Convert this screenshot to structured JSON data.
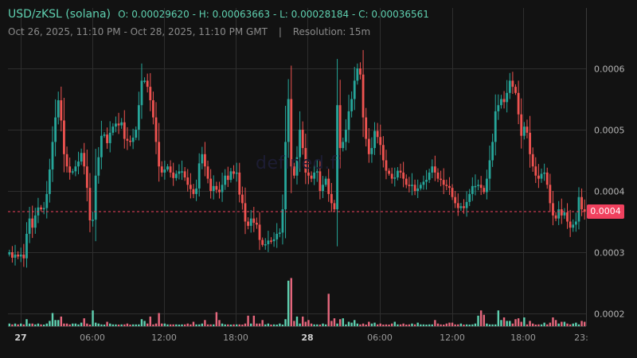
{
  "header": {
    "symbol": "USD/zKSL (solana)",
    "ohlc": "O: 0.00029620 - H: 0.00063663 - L: 0.00028184 - C: 0.00036561",
    "range": "Oct 26, 2025, 11:10 PM GMT - Oct 28, 2025, 11:10 PM GMT",
    "range_start": "Oct 26, 2025, 11:10 PM",
    "range_end": "Oct 28, 2025, 11:10 PM GMT",
    "separator": "|",
    "resolution": "Resolution: 15m"
  },
  "watermark": "defined.fi",
  "price_tag": "0.0004",
  "colors": {
    "background": "#121212",
    "up": "#26a69a",
    "down": "#ef5350",
    "up_volume": "#5fd0b0",
    "down_volume": "#e5677d",
    "grid": "#2e2e2e",
    "price_line": "#f0415e",
    "header_text": "#5fd0b0"
  },
  "chart_data": {
    "type": "candlestick",
    "title": "USD/zKSL (solana)",
    "subtitle": "Oct 26, 2025, 11:10 PM - Oct 28, 2025, 11:10 PM GMT | Resolution: 15m",
    "open": 0.0002962,
    "high": 0.00063663,
    "low": 0.00028184,
    "close": 0.00036561,
    "current_price_label": "0.0004",
    "y_ticks": [
      "0.0006",
      "0.0005",
      "0.0004",
      "0.0003",
      "0.0002"
    ],
    "y_tick_values": [
      0.0006,
      0.0005,
      0.0004,
      0.0003,
      0.0002
    ],
    "x_ticks": [
      "27",
      "06:00",
      "12:00",
      "18:00",
      "28",
      "06:00",
      "12:00",
      "18:00",
      "23:"
    ],
    "x_tick_bold": [
      true,
      false,
      false,
      false,
      true,
      false,
      false,
      false,
      false
    ],
    "ylim": [
      0.00018,
      0.00066
    ],
    "grid": true,
    "closes": [
      0.0003,
      0.000291,
      0.000296,
      0.000293,
      0.000296,
      0.00029,
      0.00033,
      0.000355,
      0.00034,
      0.00036,
      0.000373,
      0.00037,
      0.000372,
      0.000395,
      0.000435,
      0.00048,
      0.00052,
      0.000548,
      0.000515,
      0.00046,
      0.00044,
      0.00043,
      0.000432,
      0.00044,
      0.000448,
      0.000462,
      0.00044,
      0.000405,
      0.000352,
      0.000353,
      0.000425,
      0.000455,
      0.00049,
      0.000492,
      0.000478,
      0.000495,
      0.000505,
      0.00051,
      0.000507,
      0.000512,
      0.000485,
      0.000482,
      0.00048,
      0.000487,
      0.0005,
      0.00054,
      0.00058,
      0.00058,
      0.00057,
      0.000548,
      0.00052,
      0.00048,
      0.00044,
      0.00043,
      0.000435,
      0.00044,
      0.00043,
      0.000421,
      0.000428,
      0.000432,
      0.000432,
      0.000422,
      0.00041,
      0.000403,
      0.000395,
      0.000404,
      0.000445,
      0.00046,
      0.00044,
      0.00042,
      0.0004,
      0.000408,
      0.000402,
      0.000398,
      0.00041,
      0.000425,
      0.000418,
      0.000432,
      0.000428,
      0.00043,
      0.000394,
      0.00038,
      0.00035,
      0.000343,
      0.000355,
      0.000348,
      0.000345,
      0.00032,
      0.000312,
      0.000313,
      0.000319,
      0.000318,
      0.000321,
      0.00033,
      0.000332,
      0.00037,
      0.00048,
      0.00055,
      0.00044,
      0.000425,
      0.000455,
      0.0005,
      0.00047,
      0.00043,
      0.000425,
      0.00042,
      0.00043,
      0.000432,
      0.0004,
      0.00041,
      0.00042,
      0.000395,
      0.00038,
      0.00037,
      0.00054,
      0.00047,
      0.00048,
      0.0005,
      0.00053,
      0.00055,
      0.00058,
      0.0006,
      0.00059,
      0.00052,
      0.000485,
      0.00046,
      0.00047,
      0.000498,
      0.000488,
      0.000475,
      0.00045,
      0.000433,
      0.000428,
      0.00042,
      0.000422,
      0.000433,
      0.00043,
      0.00042,
      0.00041,
      0.000408,
      0.00041,
      0.0004,
      0.000404,
      0.00041,
      0.000415,
      0.000418,
      0.00043,
      0.00044,
      0.00043,
      0.00042,
      0.000418,
      0.00041,
      0.000408,
      0.000405,
      0.00039,
      0.00038,
      0.000372,
      0.000375,
      0.000372,
      0.000382,
      0.000395,
      0.000408,
      0.000408,
      0.00041,
      0.000405,
      0.000398,
      0.00042,
      0.00045,
      0.00048,
      0.00053,
      0.00054,
      0.00055,
      0.000545,
      0.00056,
      0.00058,
      0.00057,
      0.00056,
      0.000525,
      0.00049,
      0.000505,
      0.000495,
      0.00046,
      0.00044,
      0.000425,
      0.00042,
      0.000428,
      0.00043,
      0.00041,
      0.00038,
      0.00036,
      0.000355,
      0.00037,
      0.00036,
      0.000365,
      0.00035,
      0.00034,
      0.000345,
      0.00035,
      0.00039,
      0.00037,
      0.000366
    ],
    "volume_relative": [
      0.03,
      0.02,
      0.03,
      0.02,
      0.03,
      0.02,
      0.08,
      0.03,
      0.03,
      0.02,
      0.03,
      0.02,
      0.01,
      0.03,
      0.06,
      0.15,
      0.07,
      0.07,
      0.11,
      0.03,
      0.03,
      0.02,
      0.03,
      0.03,
      0.02,
      0.04,
      0.09,
      0.03,
      0.01,
      0.18,
      0.04,
      0.03,
      0.02,
      0.01,
      0.05,
      0.03,
      0.02,
      0.02,
      0.01,
      0.02,
      0.02,
      0.03,
      0.01,
      0.02,
      0.02,
      0.02,
      0.08,
      0.06,
      0.03,
      0.11,
      0.02,
      0.03,
      0.15,
      0.03,
      0.03,
      0.02,
      0.02,
      0.02,
      0.02,
      0.01,
      0.02,
      0.02,
      0.03,
      0.02,
      0.05,
      0.02,
      0.02,
      0.03,
      0.07,
      0.02,
      0.02,
      0.02,
      0.16,
      0.07,
      0.03,
      0.02,
      0.02,
      0.01,
      0.02,
      0.02,
      0.02,
      0.01,
      0.03,
      0.12,
      0.03,
      0.12,
      0.03,
      0.03,
      0.07,
      0.02,
      0.03,
      0.01,
      0.02,
      0.01,
      0.03,
      0.01,
      0.08,
      0.52,
      0.55,
      0.06,
      0.11,
      0.03,
      0.11,
      0.05,
      0.07,
      0.03,
      0.02,
      0.02,
      0.01,
      0.03,
      0.02,
      0.37,
      0.06,
      0.09,
      0.03,
      0.08,
      0.09,
      0.02,
      0.05,
      0.04,
      0.07,
      0.03,
      0.02,
      0.03,
      0.01,
      0.05,
      0.03,
      0.04,
      0.02,
      0.03,
      0.01,
      0.02,
      0.01,
      0.03,
      0.05,
      0.02,
      0.02,
      0.03,
      0.01,
      0.02,
      0.03,
      0.02,
      0.04,
      0.02,
      0.02,
      0.01,
      0.02,
      0.02,
      0.07,
      0.03,
      0.02,
      0.01,
      0.03,
      0.04,
      0.04,
      0.02,
      0.02,
      0.03,
      0.01,
      0.02,
      0.01,
      0.02,
      0.03,
      0.12,
      0.18,
      0.13,
      0.03,
      0.02,
      0.02,
      0.02,
      0.18,
      0.07,
      0.1,
      0.06,
      0.06,
      0.03,
      0.08,
      0.09,
      0.05,
      0.1,
      0.02,
      0.06,
      0.03,
      0.01,
      0.02,
      0.02,
      0.04,
      0.02,
      0.04,
      0.1,
      0.07,
      0.03,
      0.05,
      0.05,
      0.03,
      0.02,
      0.03,
      0.04,
      0.02,
      0.06,
      0.05,
      0.03,
      0.02
    ]
  }
}
